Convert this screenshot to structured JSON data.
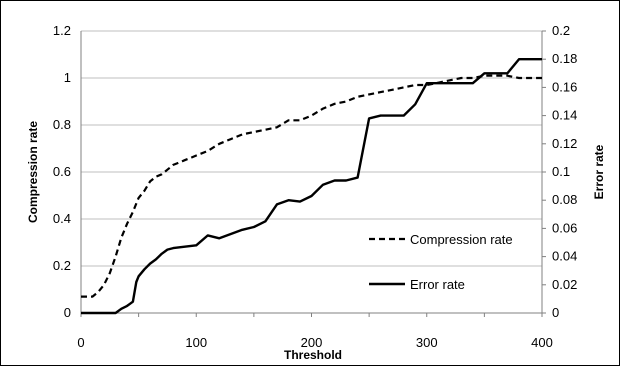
{
  "chart_data": {
    "type": "line",
    "xlabel": "Threshold",
    "ylabel_left": "Compression rate",
    "ylabel_right": "Error rate",
    "xlim": [
      0,
      400
    ],
    "ylim_left": [
      0,
      1.2
    ],
    "ylim_right": [
      0,
      0.2
    ],
    "x_ticks": [
      "0",
      "100",
      "200",
      "300",
      "400"
    ],
    "y_left_ticks": [
      "0",
      "0.2",
      "0.4",
      "0.6",
      "0.8",
      "1",
      "1.2"
    ],
    "y_right_ticks": [
      "0",
      "0.02",
      "0.04",
      "0.06",
      "0.08",
      "0.1",
      "0.12",
      "0.14",
      "0.16",
      "0.18",
      "0.2"
    ],
    "grid": "horizontal",
    "legend_position": "lower-right",
    "series": [
      {
        "name": "Compression rate",
        "axis": "left",
        "style": "dashed",
        "x": [
          0,
          10,
          15,
          20,
          25,
          30,
          35,
          40,
          45,
          50,
          55,
          60,
          65,
          70,
          75,
          80,
          85,
          90,
          95,
          100,
          110,
          120,
          130,
          140,
          150,
          160,
          170,
          180,
          190,
          200,
          210,
          220,
          230,
          240,
          250,
          260,
          270,
          280,
          290,
          300,
          310,
          320,
          330,
          340,
          350,
          360,
          370,
          380,
          390,
          400
        ],
        "values": [
          0.07,
          0.07,
          0.09,
          0.12,
          0.17,
          0.24,
          0.32,
          0.38,
          0.43,
          0.49,
          0.52,
          0.56,
          0.58,
          0.59,
          0.61,
          0.63,
          0.64,
          0.65,
          0.66,
          0.67,
          0.69,
          0.72,
          0.74,
          0.76,
          0.77,
          0.78,
          0.79,
          0.82,
          0.82,
          0.84,
          0.87,
          0.89,
          0.9,
          0.92,
          0.93,
          0.94,
          0.95,
          0.96,
          0.97,
          0.97,
          0.98,
          0.99,
          1.0,
          1.0,
          1.01,
          1.01,
          1.01,
          1.0,
          1.0,
          1.0
        ]
      },
      {
        "name": "Error rate",
        "axis": "right",
        "style": "solid",
        "x": [
          0,
          30,
          35,
          40,
          45,
          48,
          50,
          55,
          60,
          65,
          70,
          75,
          80,
          90,
          100,
          110,
          120,
          130,
          140,
          150,
          160,
          170,
          180,
          190,
          200,
          210,
          220,
          230,
          240,
          250,
          260,
          270,
          280,
          290,
          300,
          310,
          320,
          330,
          340,
          350,
          360,
          370,
          380,
          390,
          400
        ],
        "values": [
          0,
          0,
          0.003,
          0.005,
          0.008,
          0.022,
          0.026,
          0.031,
          0.035,
          0.038,
          0.042,
          0.045,
          0.046,
          0.047,
          0.048,
          0.055,
          0.053,
          0.056,
          0.059,
          0.061,
          0.065,
          0.077,
          0.08,
          0.079,
          0.083,
          0.091,
          0.094,
          0.094,
          0.096,
          0.138,
          0.14,
          0.14,
          0.14,
          0.148,
          0.163,
          0.163,
          0.163,
          0.163,
          0.163,
          0.17,
          0.17,
          0.17,
          0.18,
          0.18,
          0.18
        ]
      }
    ]
  }
}
